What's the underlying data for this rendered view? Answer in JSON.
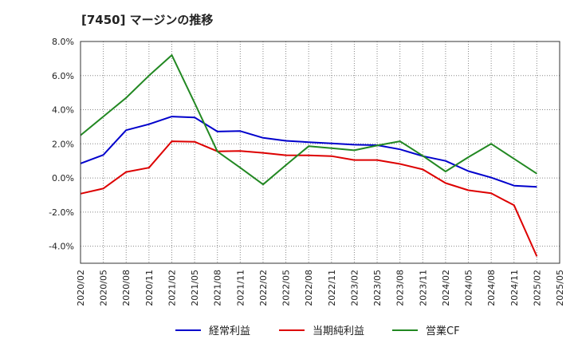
{
  "chart_data": {
    "type": "line",
    "title": "[7450]  マージンの推移",
    "xlabel": "",
    "ylabel": "",
    "x": [
      "2020/02",
      "2020/05",
      "2020/08",
      "2020/11",
      "2021/02",
      "2021/05",
      "2021/08",
      "2021/11",
      "2022/02",
      "2022/05",
      "2022/08",
      "2022/11",
      "2023/02",
      "2023/05",
      "2023/08",
      "2023/11",
      "2024/02",
      "2024/05",
      "2024/08",
      "2024/11",
      "2025/02",
      "2025/05"
    ],
    "ylim": [
      -5,
      8
    ],
    "yticks": [
      -4,
      -2,
      0,
      2,
      4,
      6,
      8
    ],
    "ytick_labels": [
      "-4.0%",
      "-2.0%",
      "0.0%",
      "2.0%",
      "4.0%",
      "6.0%",
      "8.0%"
    ],
    "grid": true,
    "legend_position": "bottom",
    "series": [
      {
        "name": "経常利益",
        "color": "#0000cc",
        "values": [
          0.85,
          1.35,
          2.8,
          3.15,
          3.6,
          3.55,
          2.72,
          2.75,
          2.35,
          2.18,
          2.1,
          2.03,
          1.95,
          1.92,
          1.68,
          1.28,
          1.0,
          0.4,
          0.02,
          -0.45,
          -0.52,
          null
        ]
      },
      {
        "name": "当期純利益",
        "color": "#dd0000",
        "values": [
          -0.92,
          -0.62,
          0.35,
          0.6,
          2.15,
          2.12,
          1.56,
          1.58,
          1.47,
          1.33,
          1.32,
          1.28,
          1.05,
          1.05,
          0.82,
          0.5,
          -0.3,
          -0.72,
          -0.9,
          -1.6,
          -4.6,
          null
        ]
      },
      {
        "name": "営業CF",
        "color": "#228822",
        "values": [
          2.5,
          3.6,
          4.7,
          6.0,
          7.2,
          4.4,
          1.55,
          0.6,
          -0.38,
          0.75,
          1.86,
          1.75,
          1.62,
          1.9,
          2.15,
          1.3,
          0.38,
          1.22,
          2.0,
          1.12,
          0.25,
          null
        ]
      }
    ]
  }
}
